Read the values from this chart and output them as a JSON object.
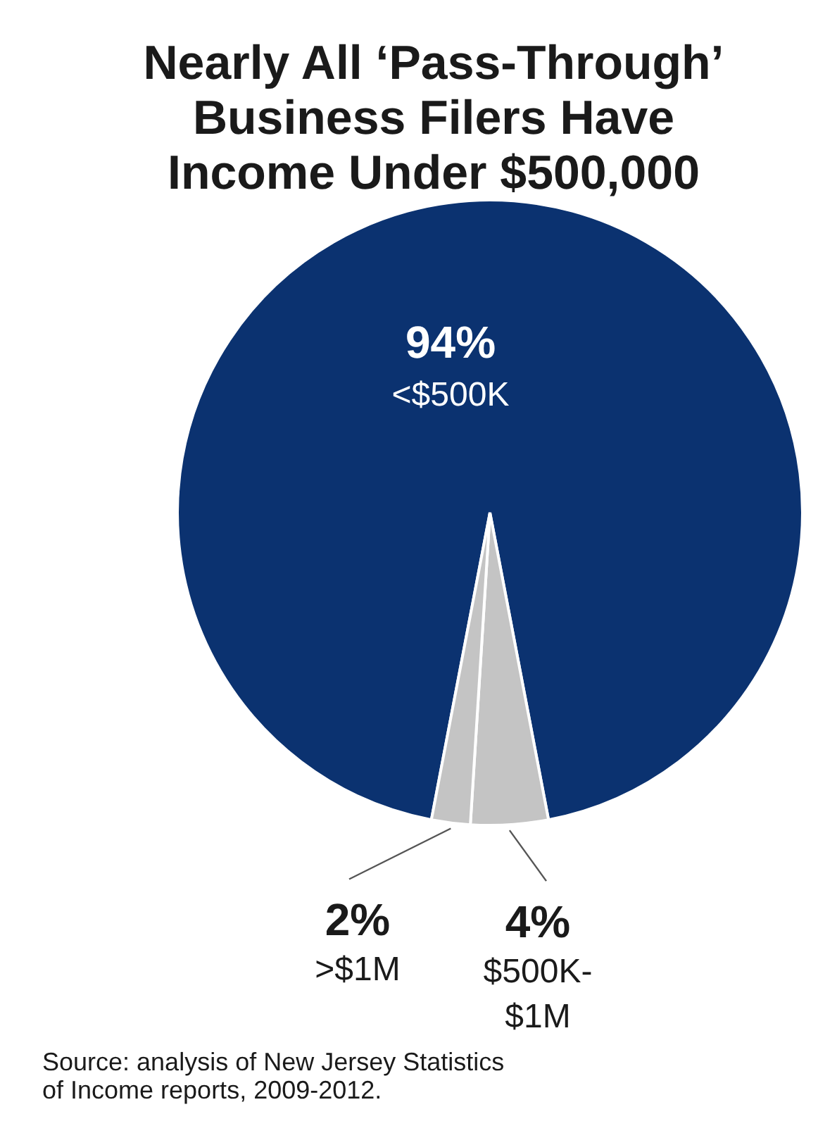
{
  "chart_data": {
    "type": "pie",
    "title": "Nearly All ‘Pass-Through’ Business Filers Have Income Under $500,000",
    "categories": [
      "<$500K",
      "$500K-$1M",
      ">$1M"
    ],
    "values": [
      94,
      4,
      2
    ],
    "value_labels": [
      "94%",
      "4%",
      "2%"
    ],
    "colors": [
      "#0b3270",
      "#c4c4c4",
      "#c4c4c4"
    ],
    "annotations": [
      "Source: analysis of New Jersey Statistics of Income reports, 2009-2012."
    ]
  }
}
